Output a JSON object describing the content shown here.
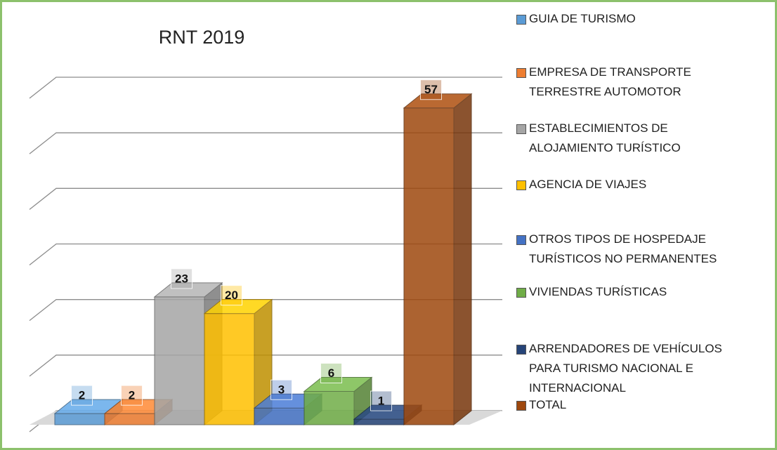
{
  "chart_data": {
    "type": "bar3d",
    "title": "RNT 2019",
    "series": [
      {
        "name": "GUIA DE TURISMO",
        "color": "#5b9bd5",
        "values": [
          2
        ]
      },
      {
        "name": "EMPRESA DE TRANSPORTE TERRESTRE AUTOMOTOR",
        "color": "#ed7d31",
        "values": [
          2
        ]
      },
      {
        "name": "ESTABLECIMIENTOS DE ALOJAMIENTO TURÍSTICO",
        "color": "#a5a5a5",
        "values": [
          23
        ]
      },
      {
        "name": "AGENCIA DE VIAJES",
        "color": "#ffc000",
        "values": [
          20
        ]
      },
      {
        "name": "OTROS TIPOS DE HOSPEDAJE TURÍSTICOS NO PERMANENTES",
        "color": "#4472c4",
        "values": [
          3
        ]
      },
      {
        "name": "VIVIENDAS TURÍSTICAS",
        "color": "#70ad47",
        "values": [
          6
        ]
      },
      {
        "name": "ARRENDADORES DE VEHÍCULOS PARA TURISMO NACIONAL E INTERNACIONAL",
        "color": "#264478",
        "values": [
          1
        ]
      },
      {
        "name": "TOTAL",
        "color": "#9e480e",
        "values": [
          57
        ]
      }
    ],
    "ylim": [
      0,
      60
    ],
    "yticks": [
      0,
      10,
      20,
      30,
      40,
      50,
      60
    ],
    "grid": true,
    "legend": "right"
  }
}
